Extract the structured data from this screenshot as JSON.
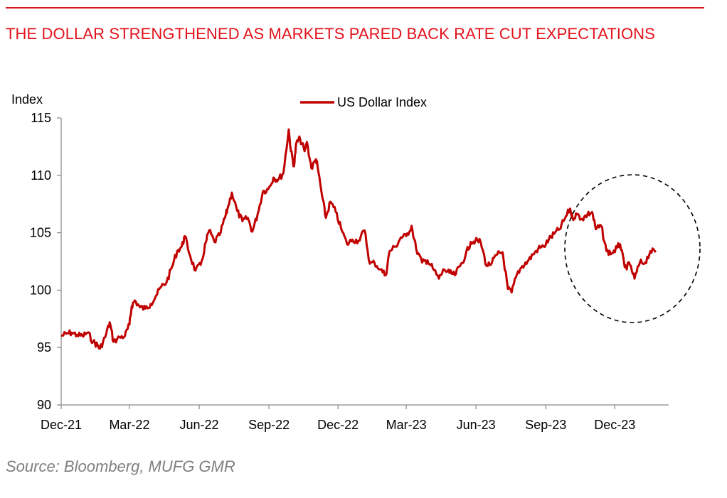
{
  "header": {
    "title": "THE DOLLAR STRENGTHENED AS MARKETS PARED BACK RATE CUT EXPECTATIONS"
  },
  "footer": {
    "source": "Source: Bloomberg, MUFG GMR"
  },
  "colors": {
    "title": "#e3121b",
    "rule": "#d7191c",
    "series": "#c00000",
    "axis": "#868686",
    "source": "#7f7f7f"
  },
  "chart_data": {
    "type": "line",
    "ylabel": "Index",
    "ylim": [
      90,
      115
    ],
    "yticks": [
      90,
      95,
      100,
      105,
      110,
      115
    ],
    "xlim": [
      "2021-12-01",
      "2024-02-10"
    ],
    "xticks": [
      {
        "date": "2021-12-01",
        "label": "Dec-21"
      },
      {
        "date": "2022-03-01",
        "label": "Mar-22"
      },
      {
        "date": "2022-06-01",
        "label": "Jun-22"
      },
      {
        "date": "2022-09-01",
        "label": "Sep-22"
      },
      {
        "date": "2022-12-01",
        "label": "Dec-22"
      },
      {
        "date": "2023-03-01",
        "label": "Mar-23"
      },
      {
        "date": "2023-06-01",
        "label": "Jun-23"
      },
      {
        "date": "2023-09-01",
        "label": "Sep-23"
      },
      {
        "date": "2023-12-01",
        "label": "Dec-23"
      }
    ],
    "grid": false,
    "legend": "top-center",
    "annotation": "dashed circle around Sep-23 to Feb-24",
    "series": [
      {
        "name": "US Dollar Index",
        "points": [
          [
            "2021-12-01",
            96.0
          ],
          [
            "2021-12-08",
            96.2
          ],
          [
            "2021-12-15",
            96.3
          ],
          [
            "2021-12-22",
            96.1
          ],
          [
            "2021-12-29",
            96.0
          ],
          [
            "2022-01-05",
            96.3
          ],
          [
            "2022-01-12",
            95.5
          ],
          [
            "2022-01-18",
            95.2
          ],
          [
            "2022-01-21",
            94.9
          ],
          [
            "2022-01-28",
            95.9
          ],
          [
            "2022-02-03",
            97.2
          ],
          [
            "2022-02-08",
            95.5
          ],
          [
            "2022-02-16",
            95.9
          ],
          [
            "2022-02-23",
            96.0
          ],
          [
            "2022-03-01",
            97.0
          ],
          [
            "2022-03-04",
            98.6
          ],
          [
            "2022-03-08",
            99.1
          ],
          [
            "2022-03-15",
            98.5
          ],
          [
            "2022-03-22",
            98.4
          ],
          [
            "2022-03-29",
            98.8
          ],
          [
            "2022-04-05",
            99.5
          ],
          [
            "2022-04-12",
            100.3
          ],
          [
            "2022-04-19",
            100.7
          ],
          [
            "2022-04-26",
            102.0
          ],
          [
            "2022-05-03",
            103.4
          ],
          [
            "2022-05-09",
            103.8
          ],
          [
            "2022-05-13",
            104.7
          ],
          [
            "2022-05-20",
            103.0
          ],
          [
            "2022-05-27",
            101.7
          ],
          [
            "2022-06-03",
            102.2
          ],
          [
            "2022-06-10",
            104.2
          ],
          [
            "2022-06-14",
            105.2
          ],
          [
            "2022-06-21",
            104.2
          ],
          [
            "2022-06-28",
            104.8
          ],
          [
            "2022-07-05",
            106.3
          ],
          [
            "2022-07-08",
            107.0
          ],
          [
            "2022-07-14",
            108.5
          ],
          [
            "2022-07-21",
            106.9
          ],
          [
            "2022-07-28",
            106.0
          ],
          [
            "2022-08-04",
            106.3
          ],
          [
            "2022-08-10",
            105.1
          ],
          [
            "2022-08-17",
            106.6
          ],
          [
            "2022-08-24",
            108.6
          ],
          [
            "2022-08-31",
            108.8
          ],
          [
            "2022-09-07",
            109.8
          ],
          [
            "2022-09-13",
            109.6
          ],
          [
            "2022-09-20",
            110.2
          ],
          [
            "2022-09-27",
            114.0
          ],
          [
            "2022-09-30",
            112.1
          ],
          [
            "2022-10-04",
            110.8
          ],
          [
            "2022-10-07",
            112.8
          ],
          [
            "2022-10-12",
            113.2
          ],
          [
            "2022-10-18",
            112.1
          ],
          [
            "2022-10-21",
            112.9
          ],
          [
            "2022-10-27",
            110.6
          ],
          [
            "2022-11-02",
            111.4
          ],
          [
            "2022-11-04",
            110.8
          ],
          [
            "2022-11-10",
            108.2
          ],
          [
            "2022-11-15",
            106.3
          ],
          [
            "2022-11-21",
            107.7
          ],
          [
            "2022-11-28",
            106.8
          ],
          [
            "2022-12-05",
            105.4
          ],
          [
            "2022-12-13",
            104.0
          ],
          [
            "2022-12-20",
            104.4
          ],
          [
            "2022-12-28",
            104.3
          ],
          [
            "2023-01-05",
            105.2
          ],
          [
            "2023-01-12",
            102.3
          ],
          [
            "2023-01-18",
            102.4
          ],
          [
            "2023-01-26",
            101.8
          ],
          [
            "2023-02-02",
            101.3
          ],
          [
            "2023-02-07",
            103.4
          ],
          [
            "2023-02-15",
            103.8
          ],
          [
            "2023-02-22",
            104.6
          ],
          [
            "2023-03-01",
            104.7
          ],
          [
            "2023-03-08",
            105.6
          ],
          [
            "2023-03-14",
            103.6
          ],
          [
            "2023-03-22",
            102.4
          ],
          [
            "2023-03-29",
            102.6
          ],
          [
            "2023-04-05",
            101.9
          ],
          [
            "2023-04-13",
            101.0
          ],
          [
            "2023-04-20",
            101.8
          ],
          [
            "2023-04-27",
            101.5
          ],
          [
            "2023-05-04",
            101.3
          ],
          [
            "2023-05-11",
            102.1
          ],
          [
            "2023-05-18",
            103.0
          ],
          [
            "2023-05-25",
            104.2
          ],
          [
            "2023-05-31",
            104.3
          ],
          [
            "2023-06-07",
            104.2
          ],
          [
            "2023-06-15",
            102.1
          ],
          [
            "2023-06-22",
            102.4
          ],
          [
            "2023-06-29",
            103.1
          ],
          [
            "2023-07-06",
            103.3
          ],
          [
            "2023-07-13",
            100.1
          ],
          [
            "2023-07-18",
            99.8
          ],
          [
            "2023-07-25",
            101.4
          ],
          [
            "2023-08-01",
            102.1
          ],
          [
            "2023-08-08",
            102.5
          ],
          [
            "2023-08-15",
            103.1
          ],
          [
            "2023-08-22",
            103.6
          ],
          [
            "2023-08-29",
            103.8
          ],
          [
            "2023-09-05",
            104.4
          ],
          [
            "2023-09-12",
            104.9
          ],
          [
            "2023-09-19",
            105.3
          ],
          [
            "2023-09-26",
            106.2
          ],
          [
            "2023-10-03",
            107.1
          ],
          [
            "2023-10-06",
            106.3
          ],
          [
            "2023-10-12",
            106.6
          ],
          [
            "2023-10-19",
            106.2
          ],
          [
            "2023-10-26",
            106.6
          ],
          [
            "2023-11-01",
            106.8
          ],
          [
            "2023-11-06",
            105.3
          ],
          [
            "2023-11-13",
            105.6
          ],
          [
            "2023-11-20",
            103.4
          ],
          [
            "2023-11-27",
            103.2
          ],
          [
            "2023-12-04",
            103.7
          ],
          [
            "2023-12-08",
            104.0
          ],
          [
            "2023-12-14",
            102.0
          ],
          [
            "2023-12-21",
            102.2
          ],
          [
            "2023-12-27",
            101.0
          ],
          [
            "2024-01-03",
            102.4
          ],
          [
            "2024-01-10",
            102.4
          ],
          [
            "2024-01-17",
            103.4
          ],
          [
            "2024-01-24",
            103.3
          ]
        ]
      }
    ]
  }
}
